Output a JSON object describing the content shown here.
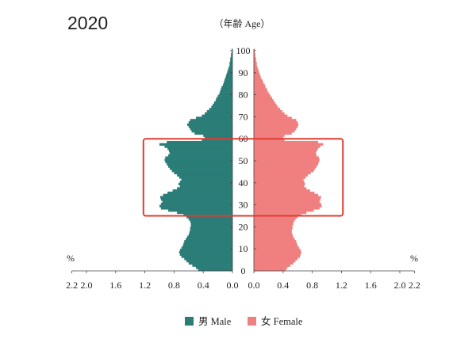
{
  "chart_data": {
    "type": "bar",
    "orientation": "horizontal",
    "title": "2020",
    "ylabel": "（年齢 Age）",
    "x_unit_left": "%",
    "x_unit_right": "%",
    "xlim": [
      0,
      2.2
    ],
    "ylim": [
      0,
      100
    ],
    "x_ticks": [
      "0.0",
      "0.4",
      "0.8",
      "1.2",
      "1.6",
      "2.0",
      "2.2"
    ],
    "y_ticks": [
      0,
      10,
      20,
      30,
      40,
      50,
      60,
      70,
      80,
      90,
      100
    ],
    "grid": false,
    "legend": "bottom",
    "categories": [
      0,
      1,
      2,
      3,
      4,
      5,
      6,
      7,
      8,
      9,
      10,
      11,
      12,
      13,
      14,
      15,
      16,
      17,
      18,
      19,
      20,
      21,
      22,
      23,
      24,
      25,
      26,
      27,
      28,
      29,
      30,
      31,
      32,
      33,
      34,
      35,
      36,
      37,
      38,
      39,
      40,
      41,
      42,
      43,
      44,
      45,
      46,
      47,
      48,
      49,
      50,
      51,
      52,
      53,
      54,
      55,
      56,
      57,
      58,
      59,
      60,
      61,
      62,
      63,
      64,
      65,
      66,
      67,
      68,
      69,
      70,
      71,
      72,
      73,
      74,
      75,
      76,
      77,
      78,
      79,
      80,
      81,
      82,
      83,
      84,
      85,
      86,
      87,
      88,
      89,
      90,
      91,
      92,
      93,
      94,
      95,
      96,
      97,
      98,
      99,
      100
    ],
    "series": [
      {
        "name": "男 Male",
        "side": "left",
        "color": "#2b7d78",
        "values": [
          0.47,
          0.5,
          0.55,
          0.6,
          0.63,
          0.66,
          0.7,
          0.72,
          0.73,
          0.72,
          0.7,
          0.68,
          0.67,
          0.66,
          0.64,
          0.62,
          0.6,
          0.59,
          0.58,
          0.58,
          0.57,
          0.57,
          0.58,
          0.6,
          0.63,
          0.67,
          0.76,
          0.88,
          0.98,
          1.0,
          0.98,
          0.96,
          0.98,
          0.99,
          0.95,
          0.89,
          0.82,
          0.76,
          0.72,
          0.74,
          0.72,
          0.7,
          0.73,
          0.76,
          0.8,
          0.83,
          0.86,
          0.88,
          0.9,
          0.92,
          0.93,
          0.92,
          0.88,
          0.86,
          0.87,
          0.89,
          0.93,
          1.0,
          0.9,
          0.42,
          0.38,
          0.4,
          0.52,
          0.56,
          0.58,
          0.6,
          0.62,
          0.6,
          0.58,
          0.5,
          0.42,
          0.38,
          0.35,
          0.32,
          0.29,
          0.27,
          0.25,
          0.23,
          0.22,
          0.2,
          0.18,
          0.17,
          0.16,
          0.15,
          0.13,
          0.12,
          0.11,
          0.1,
          0.09,
          0.08,
          0.07,
          0.06,
          0.05,
          0.04,
          0.04,
          0.03,
          0.03,
          0.02,
          0.02,
          0.01,
          0.01
        ]
      },
      {
        "name": "女 Female",
        "side": "right",
        "color": "#f07f7f",
        "values": [
          0.44,
          0.46,
          0.5,
          0.54,
          0.57,
          0.6,
          0.63,
          0.64,
          0.65,
          0.64,
          0.62,
          0.6,
          0.59,
          0.58,
          0.56,
          0.54,
          0.53,
          0.52,
          0.52,
          0.53,
          0.53,
          0.54,
          0.55,
          0.57,
          0.6,
          0.65,
          0.72,
          0.82,
          0.9,
          0.93,
          0.92,
          0.9,
          0.91,
          0.92,
          0.88,
          0.83,
          0.77,
          0.72,
          0.69,
          0.7,
          0.69,
          0.68,
          0.71,
          0.74,
          0.78,
          0.82,
          0.84,
          0.86,
          0.88,
          0.89,
          0.9,
          0.89,
          0.86,
          0.85,
          0.86,
          0.88,
          0.91,
          0.95,
          0.88,
          0.42,
          0.4,
          0.42,
          0.52,
          0.56,
          0.58,
          0.6,
          0.61,
          0.6,
          0.58,
          0.52,
          0.46,
          0.42,
          0.39,
          0.36,
          0.33,
          0.31,
          0.29,
          0.27,
          0.25,
          0.23,
          0.21,
          0.19,
          0.18,
          0.16,
          0.15,
          0.13,
          0.12,
          0.1,
          0.09,
          0.08,
          0.07,
          0.06,
          0.05,
          0.04,
          0.04,
          0.03,
          0.03,
          0.02,
          0.02,
          0.01,
          0.01
        ]
      }
    ],
    "highlight": {
      "age_range": [
        25,
        60
      ],
      "value_extent": 1.22,
      "color": "#e03c31"
    }
  }
}
